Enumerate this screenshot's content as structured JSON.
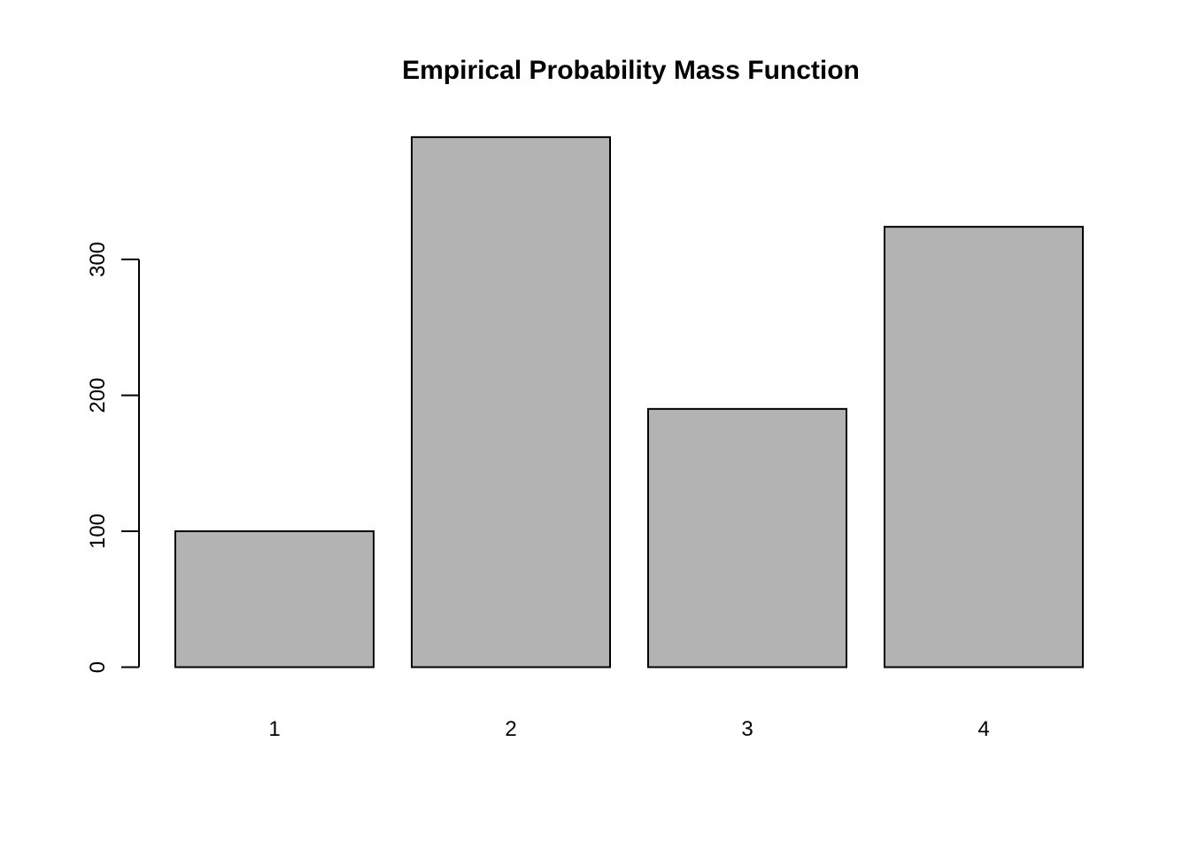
{
  "chart_data": {
    "type": "bar",
    "title": "Empirical Probability Mass Function",
    "xlabel": "",
    "ylabel": "",
    "categories": [
      "1",
      "2",
      "3",
      "4"
    ],
    "values": [
      100,
      390,
      190,
      324
    ],
    "yticks": [
      0,
      100,
      200,
      300
    ],
    "ylim": [
      0,
      390
    ],
    "grid": false,
    "legend": null,
    "colors": {
      "bar_fill": "#B3B3B3",
      "bar_border": "#000000",
      "axis": "#000000",
      "background": "#FFFFFF"
    }
  }
}
